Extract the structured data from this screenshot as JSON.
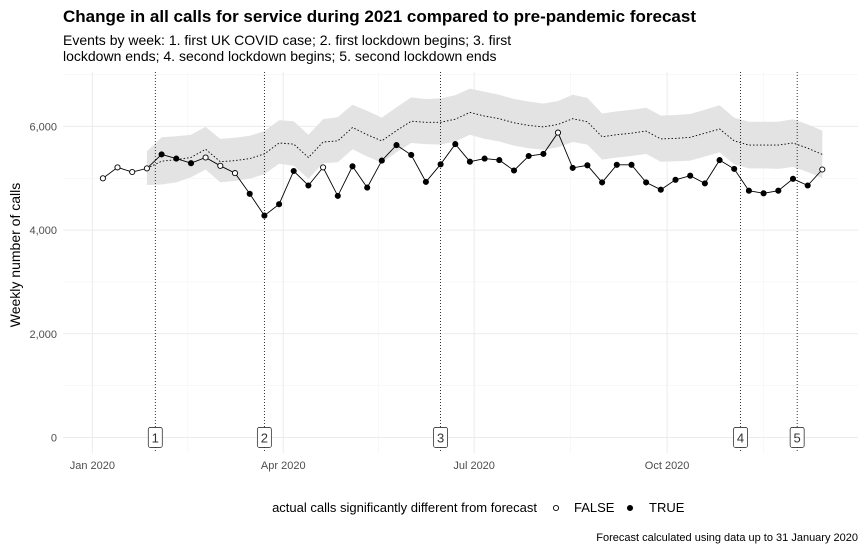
{
  "chart_data": {
    "type": "line",
    "title": "Change in all calls for service during 2021 compared to pre-pandemic forecast",
    "subtitle_lines": [
      "Events by week: 1. first UK COVID case; 2. first lockdown begins; 3. first",
      "lockdown ends; 4. second lockdown begins; 5. second lockdown ends"
    ],
    "ylabel": "Weekly number of calls",
    "xlabel": "",
    "x_tick_labels": [
      {
        "date": "2020-01-01",
        "label": "Jan 2020"
      },
      {
        "date": "2020-04-01",
        "label": "Apr 2020"
      },
      {
        "date": "2020-07-01",
        "label": "Jul 2020"
      },
      {
        "date": "2020-10-01",
        "label": "Oct 2020"
      }
    ],
    "y_ticks": [
      0,
      2000,
      4000,
      6000
    ],
    "y_tick_labels": [
      "0",
      "2,000",
      "4,000",
      "6,000"
    ],
    "xlim": [
      "2019-12-18",
      "2020-12-31"
    ],
    "ylim": [
      -300,
      7050
    ],
    "grid": true,
    "legend": {
      "title": "actual calls significantly different from forecast",
      "position": "bottom",
      "items": [
        {
          "label": "FALSE",
          "style": "open"
        },
        {
          "label": "TRUE",
          "style": "filled"
        }
      ]
    },
    "caption": "Forecast calculated using data up to 31 January 2020",
    "events": [
      {
        "label": "1",
        "date": "2020-01-31"
      },
      {
        "label": "2",
        "date": "2020-03-23"
      },
      {
        "label": "3",
        "date": "2020-06-15"
      },
      {
        "label": "4",
        "date": "2020-11-05"
      },
      {
        "label": "5",
        "date": "2020-12-02"
      }
    ],
    "series": [
      {
        "name": "actual",
        "style": "solid",
        "dates": [
          "2020-01-06",
          "2020-01-13",
          "2020-01-20",
          "2020-01-27",
          "2020-02-03",
          "2020-02-10",
          "2020-02-17",
          "2020-02-24",
          "2020-03-02",
          "2020-03-09",
          "2020-03-16",
          "2020-03-23",
          "2020-03-30",
          "2020-04-06",
          "2020-04-13",
          "2020-04-20",
          "2020-04-27",
          "2020-05-04",
          "2020-05-11",
          "2020-05-18",
          "2020-05-25",
          "2020-06-01",
          "2020-06-08",
          "2020-06-15",
          "2020-06-22",
          "2020-06-29",
          "2020-07-06",
          "2020-07-13",
          "2020-07-20",
          "2020-07-27",
          "2020-08-03",
          "2020-08-10",
          "2020-08-17",
          "2020-08-24",
          "2020-08-31",
          "2020-09-07",
          "2020-09-14",
          "2020-09-21",
          "2020-09-28",
          "2020-10-05",
          "2020-10-12",
          "2020-10-19",
          "2020-10-26",
          "2020-11-02",
          "2020-11-09",
          "2020-11-16",
          "2020-11-23",
          "2020-11-30",
          "2020-12-07",
          "2020-12-14"
        ],
        "values": [
          5000,
          5210,
          5120,
          5190,
          5460,
          5380,
          5290,
          5400,
          5240,
          5100,
          4700,
          4280,
          4500,
          5140,
          4860,
          5210,
          4660,
          5230,
          4820,
          5340,
          5640,
          5450,
          4930,
          5270,
          5660,
          5320,
          5380,
          5350,
          5150,
          5430,
          5470,
          5880,
          5200,
          5250,
          4920,
          5260,
          5260,
          4920,
          4780,
          4970,
          5050,
          4900,
          5350,
          5180,
          4760,
          4710,
          4760,
          4990,
          4860,
          5170
        ]
      },
      {
        "name": "forecast",
        "style": "dotted",
        "dates": [
          "2020-01-27",
          "2020-02-03",
          "2020-02-10",
          "2020-02-17",
          "2020-02-24",
          "2020-03-02",
          "2020-03-09",
          "2020-03-16",
          "2020-03-23",
          "2020-03-30",
          "2020-04-06",
          "2020-04-13",
          "2020-04-20",
          "2020-04-27",
          "2020-05-04",
          "2020-05-11",
          "2020-05-18",
          "2020-05-25",
          "2020-06-01",
          "2020-06-08",
          "2020-06-15",
          "2020-06-22",
          "2020-06-29",
          "2020-07-06",
          "2020-07-13",
          "2020-07-20",
          "2020-07-27",
          "2020-08-03",
          "2020-08-10",
          "2020-08-17",
          "2020-08-24",
          "2020-08-31",
          "2020-09-07",
          "2020-09-14",
          "2020-09-21",
          "2020-09-28",
          "2020-10-05",
          "2020-10-12",
          "2020-10-19",
          "2020-10-26",
          "2020-11-02",
          "2020-11-09",
          "2020-11-16",
          "2020-11-23",
          "2020-11-30",
          "2020-12-07",
          "2020-12-14"
        ],
        "values": [
          5190,
          5330,
          5360,
          5400,
          5560,
          5320,
          5340,
          5380,
          5470,
          5680,
          5660,
          5400,
          5700,
          5720,
          5980,
          5840,
          5720,
          5920,
          6100,
          6080,
          6080,
          6140,
          6270,
          6200,
          6150,
          6070,
          6020,
          5990,
          6040,
          6150,
          6090,
          5800,
          5840,
          5870,
          5910,
          5760,
          5770,
          5790,
          5870,
          5950,
          5720,
          5640,
          5640,
          5640,
          5680,
          5580,
          5460
        ],
        "band_low": [
          4870,
          4880,
          4920,
          5020,
          5170,
          4920,
          4950,
          4990,
          5080,
          5280,
          5240,
          4990,
          5290,
          5310,
          5560,
          5420,
          5300,
          5500,
          5680,
          5660,
          5650,
          5710,
          5840,
          5760,
          5710,
          5630,
          5580,
          5550,
          5600,
          5700,
          5650,
          5360,
          5400,
          5430,
          5470,
          5320,
          5330,
          5340,
          5420,
          5500,
          5270,
          5190,
          5190,
          5180,
          5220,
          5120,
          5000
        ],
        "band_high": [
          5520,
          5790,
          5810,
          5840,
          5990,
          5760,
          5780,
          5820,
          5910,
          6120,
          6100,
          5840,
          6140,
          6180,
          6420,
          6300,
          6170,
          6370,
          6560,
          6530,
          6540,
          6600,
          6730,
          6670,
          6610,
          6530,
          6480,
          6440,
          6490,
          6610,
          6550,
          6250,
          6290,
          6320,
          6360,
          6210,
          6220,
          6240,
          6320,
          6410,
          6170,
          6090,
          6090,
          6090,
          6140,
          6040,
          5920
        ]
      }
    ],
    "significant": [
      false,
      false,
      false,
      false,
      true,
      true,
      true,
      false,
      false,
      false,
      true,
      true,
      true,
      true,
      true,
      false,
      true,
      true,
      true,
      true,
      true,
      true,
      true,
      true,
      true,
      true,
      true,
      true,
      true,
      true,
      true,
      false,
      true,
      true,
      true,
      true,
      true,
      true,
      true,
      true,
      true,
      true,
      true,
      true,
      true,
      true,
      true,
      true,
      true,
      false
    ]
  }
}
